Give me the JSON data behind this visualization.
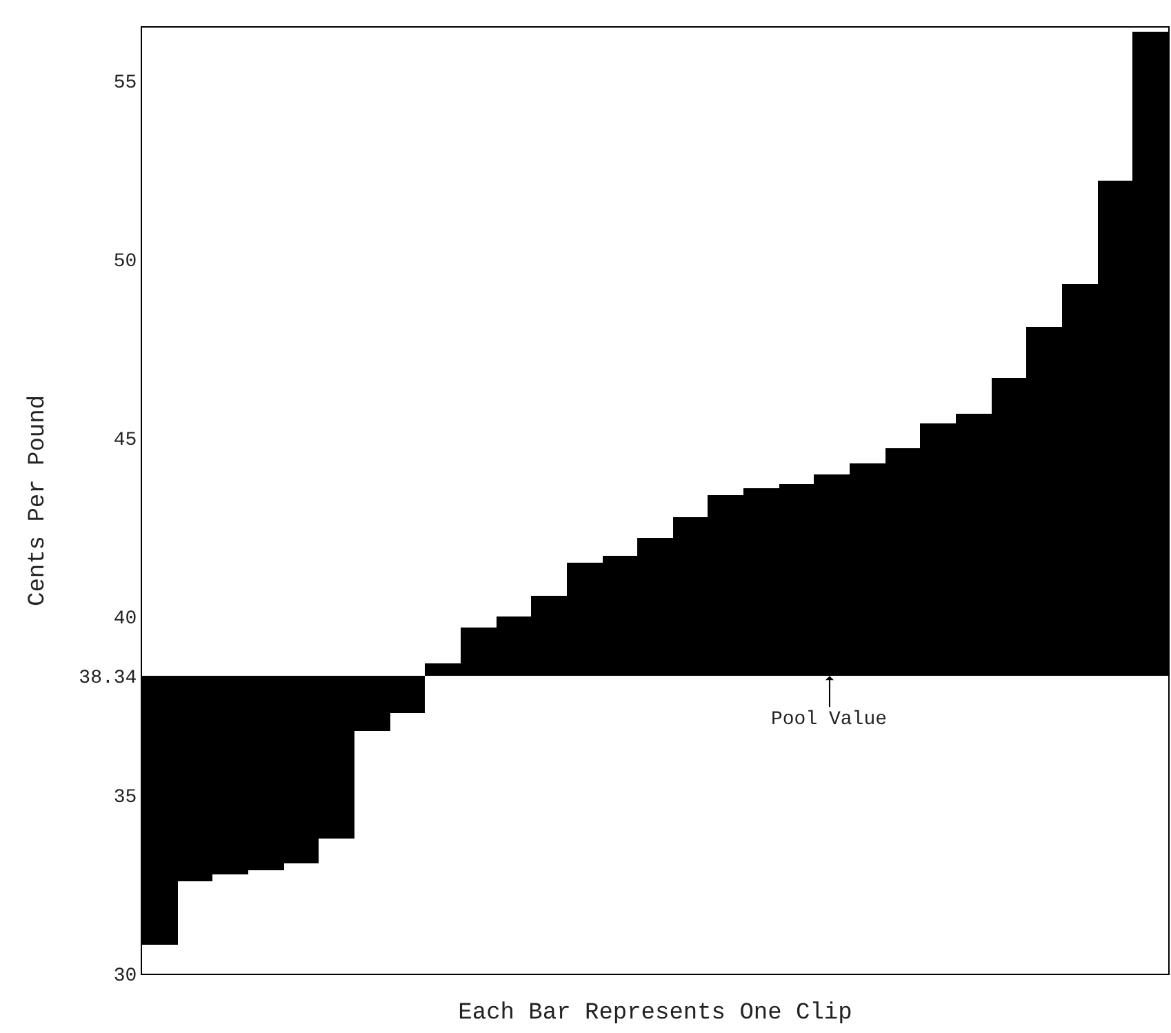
{
  "chart_data": {
    "type": "bar",
    "xlabel": "Each Bar Represents One Clip",
    "ylabel": "Cents Per Pound",
    "categories": [
      null,
      null,
      null,
      null,
      null,
      null,
      null,
      null,
      null,
      null,
      null,
      null,
      null,
      null,
      null,
      null,
      null,
      null,
      null,
      null,
      null,
      null,
      null,
      null,
      null,
      null,
      null,
      null,
      null
    ],
    "base": [
      38.34,
      38.34,
      38.34,
      38.34,
      38.34,
      38.34,
      38.34,
      38.34,
      38.34,
      38.34,
      38.34,
      38.34,
      38.34,
      38.34,
      38.34,
      38.34,
      38.34,
      38.34,
      38.34,
      38.34,
      38.34,
      38.34,
      38.34,
      38.34,
      38.34,
      38.34,
      38.34,
      38.34,
      38.34
    ],
    "values": [
      -7.54,
      -5.74,
      -5.54,
      -5.44,
      -5.24,
      -4.54,
      -1.54,
      -1.04,
      0.36,
      1.36,
      1.66,
      2.26,
      3.16,
      3.36,
      3.86,
      4.46,
      5.06,
      5.26,
      5.36,
      5.66,
      5.96,
      6.36,
      7.06,
      7.36,
      8.36,
      9.76,
      10.96,
      13.86,
      18.06
    ],
    "color": "#000000",
    "ylim": [
      30,
      56.5
    ],
    "yticks": [
      30,
      35,
      {
        "value": 38.34,
        "label": "38.34"
      },
      40,
      45,
      50,
      55
    ],
    "tick_labels": "y",
    "annotations": [
      {
        "text": "Pool Value",
        "y": 38.34
      }
    ]
  }
}
